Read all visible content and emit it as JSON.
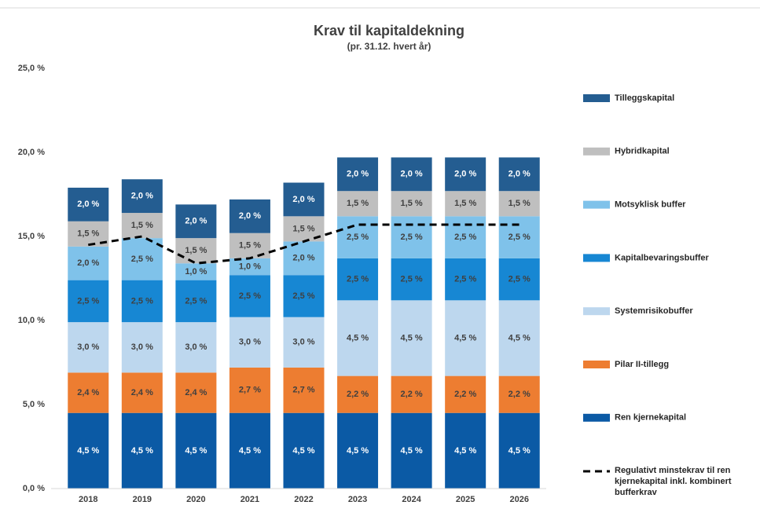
{
  "chart_data": {
    "type": "bar",
    "stacked": true,
    "title": "Krav til kapitaldekning",
    "subtitle": "(pr. 31.12. hvert år)",
    "categories": [
      "2018",
      "2019",
      "2020",
      "2021",
      "2022",
      "2023",
      "2024",
      "2025",
      "2026"
    ],
    "ylim": [
      0,
      25
    ],
    "yticks": [
      {
        "value": 0,
        "label": "0,0 %"
      },
      {
        "value": 5,
        "label": "5,0 %"
      },
      {
        "value": 10,
        "label": "10,0 %"
      },
      {
        "value": 15,
        "label": "15,0 %"
      },
      {
        "value": 20,
        "label": "20,0 %"
      },
      {
        "value": 25,
        "label": "25,0 %"
      }
    ],
    "series": [
      {
        "name": "Ren kjernekapital",
        "color": "#0b5aa5",
        "label_color": "#ffffff",
        "values": [
          4.5,
          4.5,
          4.5,
          4.5,
          4.5,
          4.5,
          4.5,
          4.5,
          4.5
        ],
        "value_labels": [
          "4,5 %",
          "4,5 %",
          "4,5 %",
          "4,5 %",
          "4,5 %",
          "4,5 %",
          "4,5 %",
          "4,5 %",
          "4,5 %"
        ]
      },
      {
        "name": "Pilar II-tillegg",
        "color": "#ed7d31",
        "label_color": "#404040",
        "values": [
          2.4,
          2.4,
          2.4,
          2.7,
          2.7,
          2.2,
          2.2,
          2.2,
          2.2
        ],
        "value_labels": [
          "2,4 %",
          "2,4 %",
          "2,4 %",
          "2,7 %",
          "2,7 %",
          "2,2 %",
          "2,2 %",
          "2,2 %",
          "2,2 %"
        ]
      },
      {
        "name": "Systemrisikobuffer",
        "color": "#bdd7ee",
        "label_color": "#404040",
        "values": [
          3.0,
          3.0,
          3.0,
          3.0,
          3.0,
          4.5,
          4.5,
          4.5,
          4.5
        ],
        "value_labels": [
          "3,0 %",
          "3,0 %",
          "3,0 %",
          "3,0 %",
          "3,0 %",
          "4,5 %",
          "4,5 %",
          "4,5 %",
          "4,5 %"
        ]
      },
      {
        "name": "Kapitalbevaringsbuffer",
        "color": "#1787d3",
        "label_color": "#404040",
        "values": [
          2.5,
          2.5,
          2.5,
          2.5,
          2.5,
          2.5,
          2.5,
          2.5,
          2.5
        ],
        "value_labels": [
          "2,5 %",
          "2,5 %",
          "2,5 %",
          "2,5 %",
          "2,5 %",
          "2,5 %",
          "2,5 %",
          "2,5 %",
          "2,5 %"
        ]
      },
      {
        "name": "Motsyklisk buffer",
        "color": "#7fc2ea",
        "label_color": "#404040",
        "values": [
          2.0,
          2.5,
          1.0,
          1.0,
          2.0,
          2.5,
          2.5,
          2.5,
          2.5
        ],
        "value_labels": [
          "2,0 %",
          "2,5 %",
          "1,0 %",
          "1,0 %",
          "2,0 %",
          "2,5 %",
          "2,5 %",
          "2,5 %",
          "2,5 %"
        ]
      },
      {
        "name": "Hybridkapital",
        "color": "#bfbfbf",
        "label_color": "#404040",
        "values": [
          1.5,
          1.5,
          1.5,
          1.5,
          1.5,
          1.5,
          1.5,
          1.5,
          1.5
        ],
        "value_labels": [
          "1,5 %",
          "1,5 %",
          "1,5 %",
          "1,5 %",
          "1,5 %",
          "1,5 %",
          "1,5 %",
          "1,5 %",
          "1,5 %"
        ]
      },
      {
        "name": "Tilleggskapital",
        "color": "#245d91",
        "label_color": "#ffffff",
        "values": [
          2.0,
          2.0,
          2.0,
          2.0,
          2.0,
          2.0,
          2.0,
          2.0,
          2.0
        ],
        "value_labels": [
          "2,0 %",
          "2,0 %",
          "2,0 %",
          "2,0 %",
          "2,0 %",
          "2,0 %",
          "2,0 %",
          "2,0 %",
          "2,0 %"
        ]
      }
    ],
    "line": {
      "name": "Regulativt minstekrav til ren kjernekapital inkl. kombinert bufferkrav",
      "color": "#000000",
      "dashed": true,
      "values": [
        14.5,
        15.0,
        13.4,
        13.7,
        14.7,
        15.7,
        15.7,
        15.7,
        15.7
      ]
    }
  }
}
